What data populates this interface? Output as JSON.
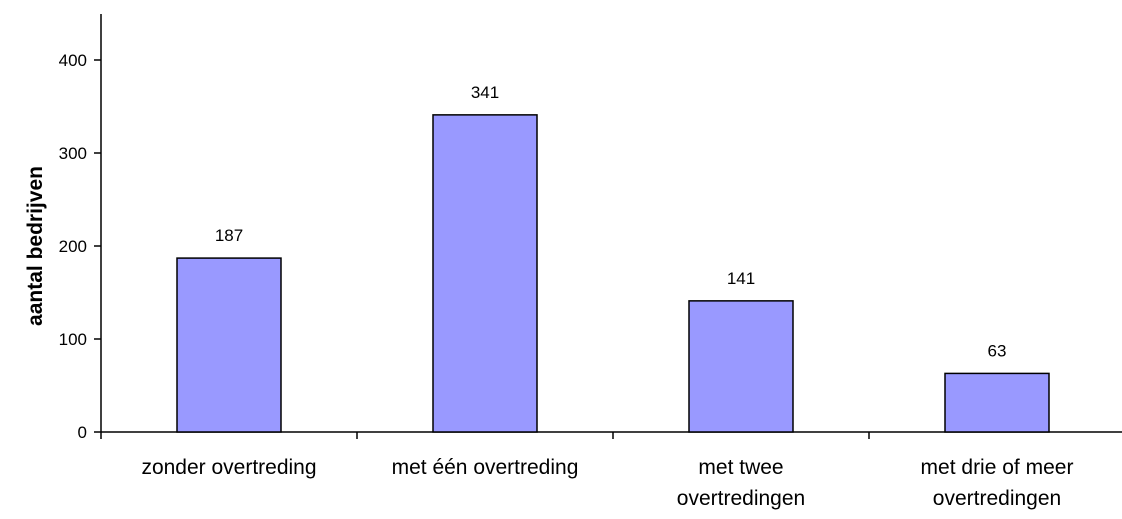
{
  "chart_data": {
    "type": "bar",
    "categories": [
      [
        "zonder overtreding"
      ],
      [
        "met één overtreding"
      ],
      [
        "met twee",
        "overtredingen"
      ],
      [
        "met drie of meer",
        "overtredingen"
      ]
    ],
    "values": [
      187,
      341,
      141,
      63
    ],
    "ylabel": "aantal bedrijven",
    "xlabel": "",
    "ylim": [
      0,
      400
    ],
    "yticks": [
      0,
      100,
      200,
      300,
      400
    ],
    "grid": false,
    "bar_color": "#9999ff",
    "data_labels": true
  }
}
